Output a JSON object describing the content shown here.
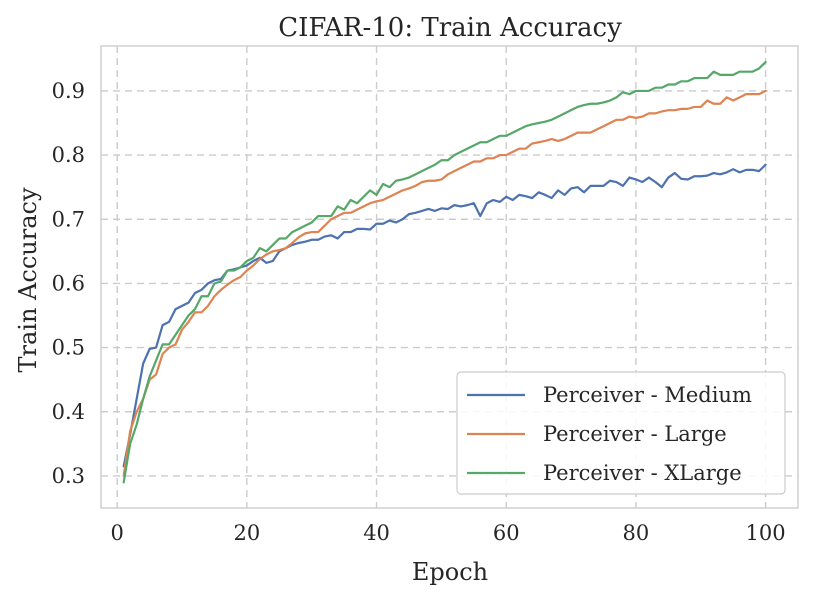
{
  "chart_data": {
    "type": "line",
    "title": "CIFAR-10: Train Accuracy",
    "xlabel": "Epoch",
    "ylabel": "Train Accuracy",
    "xlim": [
      -2.5,
      105
    ],
    "ylim": [
      0.25,
      0.97
    ],
    "xticks": [
      0,
      20,
      40,
      60,
      80,
      100
    ],
    "yticks": [
      0.3,
      0.4,
      0.5,
      0.6,
      0.7,
      0.8,
      0.9
    ],
    "xtick_labels": [
      "0",
      "20",
      "40",
      "60",
      "80",
      "100"
    ],
    "ytick_labels": [
      "0.3",
      "0.4",
      "0.5",
      "0.6",
      "0.7",
      "0.8",
      "0.9"
    ],
    "grid": true,
    "legend_position": "lower-right",
    "series": [
      {
        "name": "Perceiver - Medium",
        "color": "#4c72b0",
        "x": [
          1,
          2,
          3,
          4,
          5,
          6,
          7,
          8,
          9,
          10,
          11,
          12,
          13,
          14,
          15,
          16,
          17,
          18,
          19,
          20,
          21,
          22,
          23,
          24,
          25,
          26,
          27,
          28,
          29,
          30,
          31,
          32,
          33,
          34,
          35,
          36,
          37,
          38,
          39,
          40,
          41,
          42,
          43,
          44,
          45,
          46,
          47,
          48,
          49,
          50,
          51,
          52,
          53,
          54,
          55,
          56,
          57,
          58,
          59,
          60,
          61,
          62,
          63,
          64,
          65,
          66,
          67,
          68,
          69,
          70,
          71,
          72,
          73,
          74,
          75,
          76,
          77,
          78,
          79,
          80,
          81,
          82,
          83,
          84,
          85,
          86,
          87,
          88,
          89,
          90,
          91,
          92,
          93,
          94,
          95,
          96,
          97,
          98,
          99,
          100
        ],
        "y": [
          0.315,
          0.365,
          0.42,
          0.475,
          0.498,
          0.5,
          0.535,
          0.54,
          0.56,
          0.565,
          0.57,
          0.585,
          0.59,
          0.6,
          0.605,
          0.607,
          0.62,
          0.622,
          0.625,
          0.628,
          0.635,
          0.64,
          0.632,
          0.635,
          0.65,
          0.655,
          0.66,
          0.663,
          0.665,
          0.668,
          0.668,
          0.673,
          0.675,
          0.67,
          0.68,
          0.68,
          0.685,
          0.685,
          0.684,
          0.693,
          0.693,
          0.698,
          0.695,
          0.7,
          0.708,
          0.71,
          0.713,
          0.716,
          0.713,
          0.717,
          0.716,
          0.722,
          0.72,
          0.722,
          0.725,
          0.705,
          0.725,
          0.73,
          0.727,
          0.735,
          0.73,
          0.738,
          0.736,
          0.733,
          0.742,
          0.738,
          0.733,
          0.745,
          0.738,
          0.748,
          0.75,
          0.742,
          0.752,
          0.752,
          0.752,
          0.76,
          0.758,
          0.752,
          0.765,
          0.762,
          0.758,
          0.765,
          0.758,
          0.75,
          0.765,
          0.772,
          0.763,
          0.762,
          0.767,
          0.767,
          0.768,
          0.772,
          0.77,
          0.773,
          0.778,
          0.773,
          0.777,
          0.777,
          0.775,
          0.785
        ]
      },
      {
        "name": "Perceiver - Large",
        "color": "#dd8452",
        "x": [
          1,
          2,
          3,
          4,
          5,
          6,
          7,
          8,
          9,
          10,
          11,
          12,
          13,
          14,
          15,
          16,
          17,
          18,
          19,
          20,
          21,
          22,
          23,
          24,
          25,
          26,
          27,
          28,
          29,
          30,
          31,
          32,
          33,
          34,
          35,
          36,
          37,
          38,
          39,
          40,
          41,
          42,
          43,
          44,
          45,
          46,
          47,
          48,
          49,
          50,
          51,
          52,
          53,
          54,
          55,
          56,
          57,
          58,
          59,
          60,
          61,
          62,
          63,
          64,
          65,
          66,
          67,
          68,
          69,
          70,
          71,
          72,
          73,
          74,
          75,
          76,
          77,
          78,
          79,
          80,
          81,
          82,
          83,
          84,
          85,
          86,
          87,
          88,
          89,
          90,
          91,
          92,
          93,
          94,
          95,
          96,
          97,
          98,
          99,
          100
        ],
        "y": [
          0.3,
          0.37,
          0.4,
          0.42,
          0.45,
          0.458,
          0.49,
          0.5,
          0.505,
          0.528,
          0.54,
          0.555,
          0.555,
          0.565,
          0.58,
          0.59,
          0.598,
          0.605,
          0.61,
          0.62,
          0.628,
          0.638,
          0.645,
          0.65,
          0.652,
          0.655,
          0.663,
          0.672,
          0.678,
          0.68,
          0.68,
          0.69,
          0.7,
          0.705,
          0.71,
          0.71,
          0.715,
          0.72,
          0.725,
          0.728,
          0.73,
          0.735,
          0.74,
          0.745,
          0.748,
          0.752,
          0.758,
          0.76,
          0.76,
          0.762,
          0.77,
          0.775,
          0.78,
          0.785,
          0.79,
          0.79,
          0.795,
          0.795,
          0.8,
          0.8,
          0.805,
          0.81,
          0.81,
          0.818,
          0.82,
          0.822,
          0.825,
          0.822,
          0.825,
          0.83,
          0.835,
          0.835,
          0.835,
          0.84,
          0.845,
          0.85,
          0.855,
          0.855,
          0.86,
          0.858,
          0.86,
          0.865,
          0.865,
          0.868,
          0.87,
          0.87,
          0.872,
          0.872,
          0.875,
          0.875,
          0.885,
          0.88,
          0.88,
          0.89,
          0.885,
          0.89,
          0.895,
          0.895,
          0.895,
          0.9
        ]
      },
      {
        "name": "Perceiver - XLarge",
        "color": "#55a868",
        "x": [
          1,
          2,
          3,
          4,
          5,
          6,
          7,
          8,
          9,
          10,
          11,
          12,
          13,
          14,
          15,
          16,
          17,
          18,
          19,
          20,
          21,
          22,
          23,
          24,
          25,
          26,
          27,
          28,
          29,
          30,
          31,
          32,
          33,
          34,
          35,
          36,
          37,
          38,
          39,
          40,
          41,
          42,
          43,
          44,
          45,
          46,
          47,
          48,
          49,
          50,
          51,
          52,
          53,
          54,
          55,
          56,
          57,
          58,
          59,
          60,
          61,
          62,
          63,
          64,
          65,
          66,
          67,
          68,
          69,
          70,
          71,
          72,
          73,
          74,
          75,
          76,
          77,
          78,
          79,
          80,
          81,
          82,
          83,
          84,
          85,
          86,
          87,
          88,
          89,
          90,
          91,
          92,
          93,
          94,
          95,
          96,
          97,
          98,
          99,
          100
        ],
        "y": [
          0.29,
          0.35,
          0.38,
          0.42,
          0.455,
          0.48,
          0.505,
          0.505,
          0.52,
          0.535,
          0.55,
          0.56,
          0.58,
          0.58,
          0.6,
          0.603,
          0.62,
          0.62,
          0.625,
          0.635,
          0.64,
          0.655,
          0.65,
          0.66,
          0.67,
          0.67,
          0.68,
          0.685,
          0.69,
          0.695,
          0.705,
          0.705,
          0.705,
          0.72,
          0.715,
          0.73,
          0.725,
          0.735,
          0.745,
          0.738,
          0.755,
          0.75,
          0.76,
          0.762,
          0.765,
          0.77,
          0.775,
          0.78,
          0.785,
          0.792,
          0.792,
          0.8,
          0.805,
          0.81,
          0.815,
          0.82,
          0.82,
          0.825,
          0.83,
          0.83,
          0.835,
          0.84,
          0.845,
          0.848,
          0.85,
          0.852,
          0.855,
          0.86,
          0.865,
          0.87,
          0.875,
          0.878,
          0.88,
          0.88,
          0.882,
          0.885,
          0.89,
          0.898,
          0.895,
          0.9,
          0.9,
          0.9,
          0.905,
          0.905,
          0.91,
          0.91,
          0.915,
          0.915,
          0.92,
          0.92,
          0.92,
          0.93,
          0.925,
          0.925,
          0.925,
          0.93,
          0.93,
          0.93,
          0.935,
          0.945
        ]
      }
    ]
  }
}
